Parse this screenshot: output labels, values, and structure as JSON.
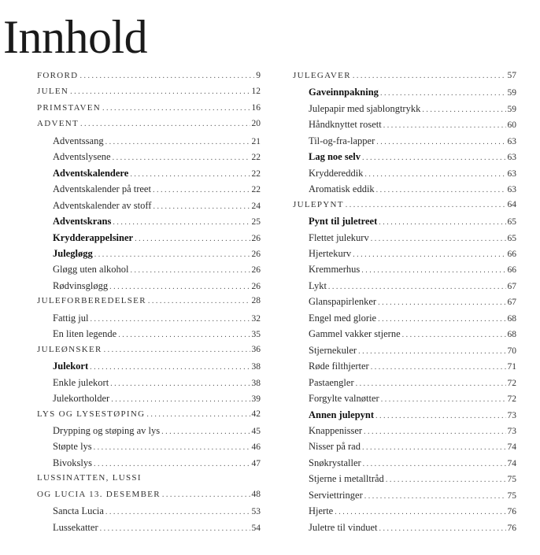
{
  "title": "Innhold",
  "columns": [
    [
      {
        "t": "h",
        "label": "Forord",
        "page": "9"
      },
      {
        "t": "h",
        "label": "Julen",
        "page": "12"
      },
      {
        "t": "h",
        "label": "Primstaven",
        "page": "16"
      },
      {
        "t": "h",
        "label": "Advent",
        "page": "20"
      },
      {
        "t": "s",
        "label": "Adventssang",
        "page": "21"
      },
      {
        "t": "s",
        "label": "Adventslysene",
        "page": "22"
      },
      {
        "t": "b",
        "label": "Adventskalendere",
        "page": "22"
      },
      {
        "t": "s",
        "label": "Adventskalender på treet",
        "page": "22"
      },
      {
        "t": "s",
        "label": "Adventskalender av stoff",
        "page": "24"
      },
      {
        "t": "b",
        "label": "Adventskrans",
        "page": "25"
      },
      {
        "t": "b",
        "label": "Krydderappelsiner",
        "page": "26"
      },
      {
        "t": "b",
        "label": "Julegløgg",
        "page": "26"
      },
      {
        "t": "s",
        "label": "Gløgg uten alkohol",
        "page": "26"
      },
      {
        "t": "s",
        "label": "Rødvinsgløgg",
        "page": "26"
      },
      {
        "t": "h",
        "label": "Juleforberedelser",
        "page": "28"
      },
      {
        "t": "s",
        "label": "Fattig jul",
        "page": "32"
      },
      {
        "t": "s",
        "label": "En liten legende",
        "page": "35"
      },
      {
        "t": "h",
        "label": "Juleønsker",
        "page": "36"
      },
      {
        "t": "b",
        "label": "Julekort",
        "page": "38"
      },
      {
        "t": "s",
        "label": "Enkle julekort",
        "page": "38"
      },
      {
        "t": "s",
        "label": "Julekortholder",
        "page": "39"
      },
      {
        "t": "h",
        "label": "Lys og lysestøping",
        "page": "42"
      },
      {
        "t": "s",
        "label": "Drypping og støping av lys",
        "page": "45"
      },
      {
        "t": "s",
        "label": "Støpte lys",
        "page": "46"
      },
      {
        "t": "s",
        "label": "Bivokslys",
        "page": "47"
      },
      {
        "t": "h",
        "label": "Lussinatten, Lussi",
        "page": ""
      },
      {
        "t": "h",
        "label": "og Lucia 13. desember",
        "page": "48"
      },
      {
        "t": "s",
        "label": "Sancta Lucia",
        "page": "53"
      },
      {
        "t": "s",
        "label": "Lussekatter",
        "page": "54"
      }
    ],
    [
      {
        "t": "h",
        "label": "Julegaver",
        "page": "57"
      },
      {
        "t": "b",
        "label": "Gaveinnpakning",
        "page": "59"
      },
      {
        "t": "s",
        "label": "Julepapir med sjablongtrykk",
        "page": "59"
      },
      {
        "t": "s",
        "label": "Håndknyttet rosett",
        "page": "60"
      },
      {
        "t": "s",
        "label": "Til-og-fra-lapper",
        "page": "63"
      },
      {
        "t": "b",
        "label": "Lag noe selv",
        "page": "63"
      },
      {
        "t": "s",
        "label": "Kryddereddik",
        "page": "63"
      },
      {
        "t": "s",
        "label": "Aromatisk eddik",
        "page": "63"
      },
      {
        "t": "h",
        "label": "Julepynt",
        "page": "64"
      },
      {
        "t": "b",
        "label": "Pynt til juletreet",
        "page": "65"
      },
      {
        "t": "s",
        "label": "Flettet julekurv",
        "page": "65"
      },
      {
        "t": "s",
        "label": "Hjertekurv",
        "page": "66"
      },
      {
        "t": "s",
        "label": "Kremmerhus",
        "page": "66"
      },
      {
        "t": "s",
        "label": "Lykt",
        "page": "67"
      },
      {
        "t": "s",
        "label": "Glanspapirlenker",
        "page": "67"
      },
      {
        "t": "s",
        "label": "Engel med glorie",
        "page": "68"
      },
      {
        "t": "s",
        "label": "Gammel vakker stjerne",
        "page": "68"
      },
      {
        "t": "s",
        "label": "Stjernekuler",
        "page": "70"
      },
      {
        "t": "s",
        "label": "Røde filthjerter",
        "page": "71"
      },
      {
        "t": "s",
        "label": "Pastaengler",
        "page": "72"
      },
      {
        "t": "s",
        "label": "Forgylte valnøtter",
        "page": "72"
      },
      {
        "t": "b",
        "label": "Annen julepynt",
        "page": "73"
      },
      {
        "t": "s",
        "label": "Knappenisser",
        "page": "73"
      },
      {
        "t": "s",
        "label": "Nisser på rad",
        "page": "74"
      },
      {
        "t": "s",
        "label": "Snøkrystaller",
        "page": "74"
      },
      {
        "t": "s",
        "label": "Stjerne i metalltråd",
        "page": "75"
      },
      {
        "t": "s",
        "label": "Serviettringer",
        "page": "75"
      },
      {
        "t": "s",
        "label": "Hjerte",
        "page": "76"
      },
      {
        "t": "s",
        "label": "Juletre til vinduet",
        "page": "76"
      }
    ]
  ]
}
